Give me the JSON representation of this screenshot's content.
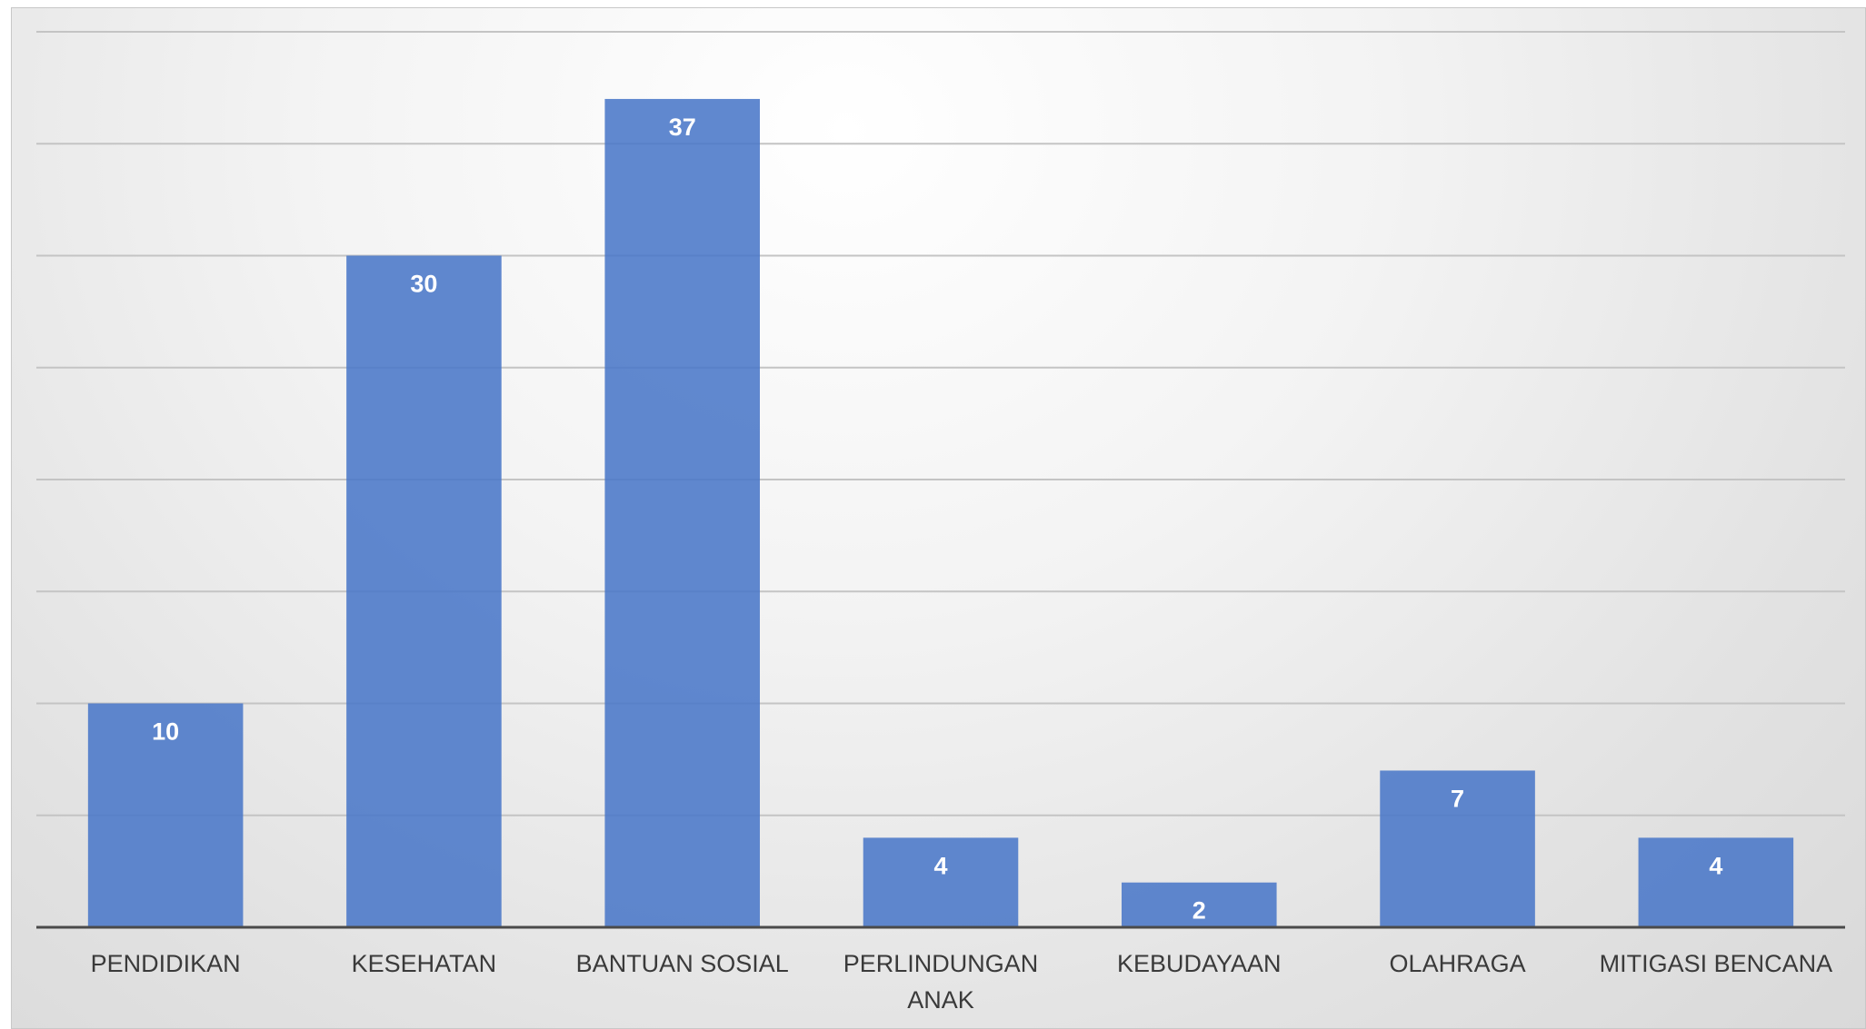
{
  "chart_data": {
    "type": "bar",
    "categories": [
      "PENDIDIKAN",
      "KESEHATAN",
      "BANTUAN SOSIAL",
      "PERLINDUNGAN ANAK",
      "KEBUDAYAAN",
      "OLAHRAGA",
      "MITIGASI BENCANA"
    ],
    "category_lines": [
      [
        "PENDIDIKAN"
      ],
      [
        "KESEHATAN"
      ],
      [
        "BANTUAN SOSIAL"
      ],
      [
        "PERLINDUNGAN",
        "ANAK"
      ],
      [
        "KEBUDAYAAN"
      ],
      [
        "OLAHRAGA"
      ],
      [
        "MITIGASI BENCANA"
      ]
    ],
    "values": [
      10,
      30,
      37,
      4,
      2,
      7,
      4
    ],
    "data_labels": [
      "10",
      "30",
      "37",
      "4",
      "2",
      "7",
      "4"
    ],
    "title": "",
    "xlabel": "",
    "ylabel": "",
    "ylim": [
      0,
      40
    ],
    "grid_step": 5,
    "grid": true,
    "legend": "none",
    "bar_color": "#4a78c8",
    "label_color": "#ffffff"
  }
}
